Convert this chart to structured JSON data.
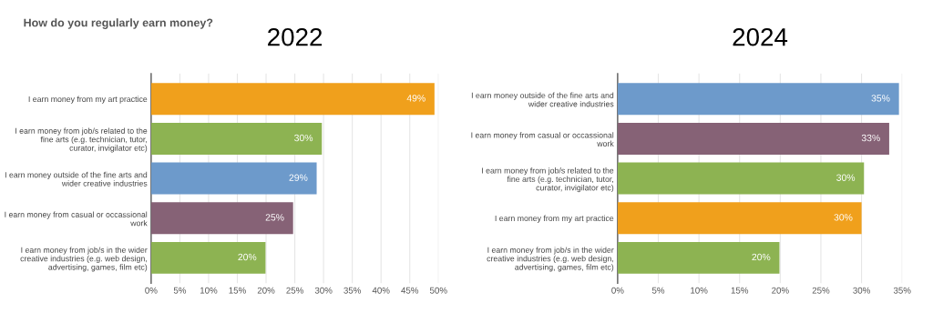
{
  "chart_data": [
    {
      "type": "bar",
      "orientation": "horizontal",
      "title": "2022",
      "annotations": [
        "How do you regularly earn money?"
      ],
      "categories": [
        "I earn money from my art practice",
        "I earn money from job/s related to the fine arts (e.g. technician, tutor, curator, invigilator etc)",
        "I earn money outside of the fine arts and wider creative industries",
        "I earn money from casual or occassional work",
        "I earn money from job/s in the wider creative industries (e.g. web design, advertising, games, film etc)"
      ],
      "values": [
        49.3,
        29.7,
        28.8,
        24.7,
        19.9
      ],
      "value_labels": [
        "49%",
        "30%",
        "29%",
        "25%",
        "20%"
      ],
      "colors": [
        "#f0a01c",
        "#8db352",
        "#6d9acb",
        "#866276",
        "#8db352"
      ],
      "xlim": [
        0,
        50
      ],
      "xticks": [
        {
          "value": 0,
          "label": "0%"
        },
        {
          "value": 5,
          "label": "5%"
        },
        {
          "value": 10,
          "label": "10%"
        },
        {
          "value": 15,
          "label": "15%"
        },
        {
          "value": 20,
          "label": "20%"
        },
        {
          "value": 25,
          "label": "25%"
        },
        {
          "value": 30,
          "label": "30%"
        },
        {
          "value": 35,
          "label": "35%"
        },
        {
          "value": 40,
          "label": "40%"
        },
        {
          "value": 45,
          "label": "45%"
        },
        {
          "value": 50,
          "label": "50%"
        }
      ],
      "grid": "x"
    },
    {
      "type": "bar",
      "orientation": "horizontal",
      "title": "2024",
      "categories": [
        "I earn money outside of the fine arts and wider creative industries",
        "I earn money from casual or occassional work",
        "I earn money from job/s related to the fine arts (e.g. technician, tutor, curator, invigilator etc)",
        "I earn money from my art practice",
        "I earn money from job/s in the wider creative industries (e.g. web design, advertising, games, film etc)"
      ],
      "values": [
        34.6,
        33.4,
        30.3,
        30.0,
        19.9
      ],
      "value_labels": [
        "35%",
        "33%",
        "30%",
        "30%",
        "20%"
      ],
      "colors": [
        "#6d9acb",
        "#866276",
        "#8db352",
        "#f0a01c",
        "#8db352"
      ],
      "xlim": [
        0,
        35
      ],
      "xticks": [
        {
          "value": 0,
          "label": "0%"
        },
        {
          "value": 5,
          "label": "5%"
        },
        {
          "value": 10,
          "label": "10%"
        },
        {
          "value": 15,
          "label": "15%"
        },
        {
          "value": 20,
          "label": "20%"
        },
        {
          "value": 25,
          "label": "25%"
        },
        {
          "value": 30,
          "label": "30%"
        },
        {
          "value": 35,
          "label": "35%"
        }
      ],
      "grid": "x"
    }
  ]
}
